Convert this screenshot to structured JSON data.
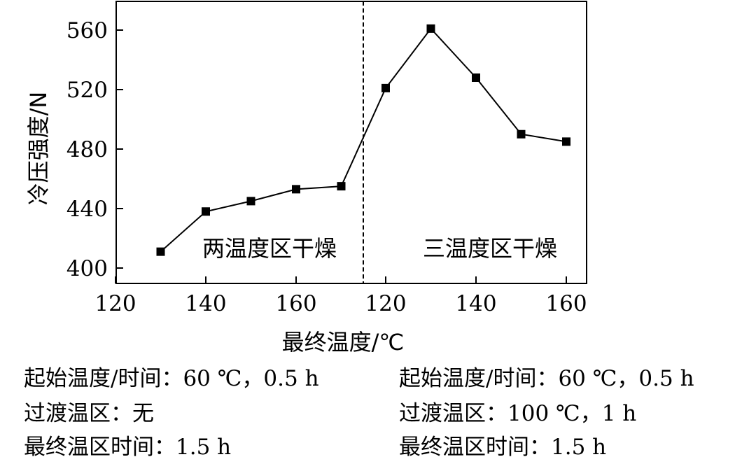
{
  "chart_data": {
    "type": "line",
    "ylabel": "冷压强度/N",
    "xlabel": "最终温度/℃",
    "ylim": [
      395,
      580
    ],
    "yticks": [
      400,
      440,
      480,
      520,
      560
    ],
    "x_tick_labels": [
      "120",
      "140",
      "160",
      "120",
      "140",
      "160"
    ],
    "grid": false,
    "legend": "none",
    "colors": {
      "line": "#000000",
      "marker": "#000000",
      "divider": "#000000"
    },
    "series": [
      {
        "region": "两温度区干燥",
        "x": [
          130,
          140,
          150,
          160,
          170
        ],
        "values": [
          411,
          438,
          445,
          453,
          455
        ]
      },
      {
        "region": "三温度区干燥",
        "x": [
          120,
          130,
          140,
          150,
          160
        ],
        "values": [
          521,
          561,
          528,
          490,
          485
        ]
      }
    ],
    "annotations": [
      "两温度区干燥",
      "三温度区干燥"
    ]
  },
  "captions": {
    "left": [
      "起始温度/时间：60 ℃，0.5 h",
      "过渡温区：无",
      "最终温区时间：1.5 h"
    ],
    "right": [
      "起始温度/时间：60 ℃，0.5 h",
      "过渡温区：100 ℃，1 h",
      "最终温区时间：1.5 h"
    ]
  }
}
